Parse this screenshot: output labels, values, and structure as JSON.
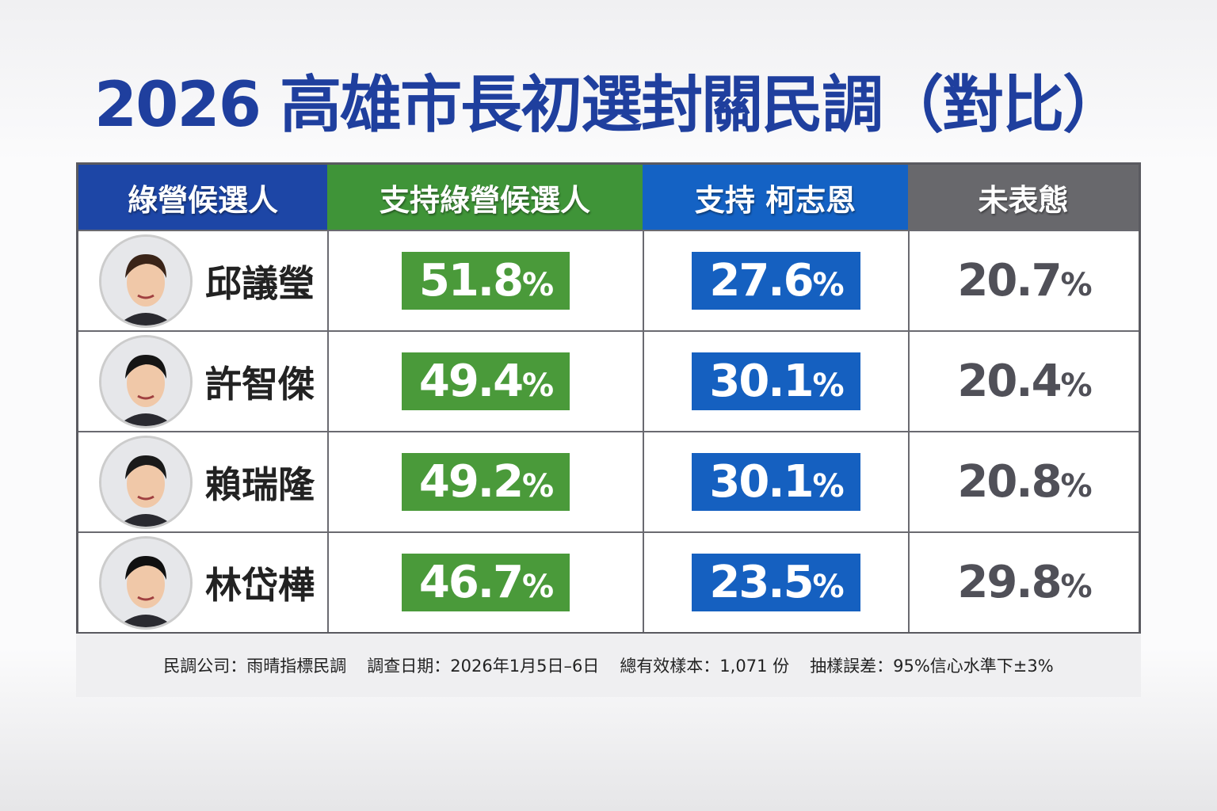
{
  "title": "2026 高雄市長初選封關民調（對比）",
  "chart_data": {
    "type": "table",
    "columns": [
      "綠營候選人",
      "支持綠營候選人",
      "支持 柯志恩",
      "未表態"
    ],
    "rows": [
      {
        "candidate": "邱議瑩",
        "green": "51.8",
        "ko": "27.6",
        "undecided": "20.7"
      },
      {
        "candidate": "許智傑",
        "green": "49.4",
        "ko": "30.1",
        "undecided": "20.4"
      },
      {
        "candidate": "賴瑞隆",
        "green": "49.2",
        "ko": "30.1",
        "undecided": "20.8"
      },
      {
        "candidate": "林岱樺",
        "green": "46.7",
        "ko": "23.5",
        "undecided": "29.8"
      }
    ],
    "unit": "%"
  },
  "footer": [
    "民調公司：雨晴指標民調",
    "調查日期：2026年1月5日–6日",
    "總有效樣本：1,071 份",
    "抽樣誤差：95%信心水準下±3%"
  ],
  "colors": {
    "title": "#1f3f9e",
    "green": "#4a9a3a",
    "blue": "#1560c0",
    "gray": "#68686c"
  }
}
